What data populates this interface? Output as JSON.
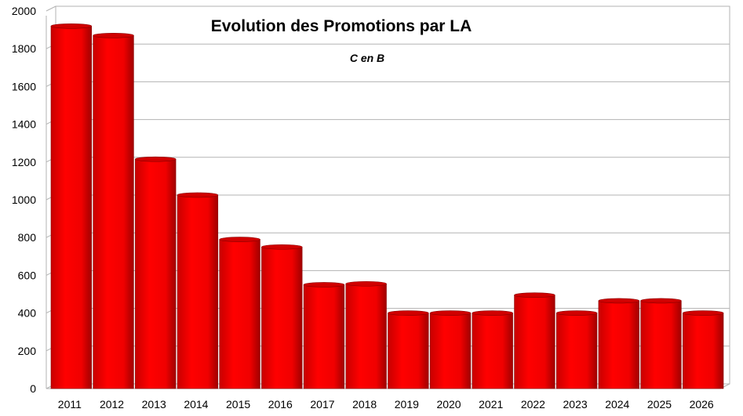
{
  "chart_data": {
    "type": "bar",
    "title": "Evolution des Promotions par LA",
    "subtitle": "C en B",
    "xlabel": "",
    "ylabel": "",
    "categories": [
      "2011",
      "2012",
      "2013",
      "2014",
      "2015",
      "2016",
      "2017",
      "2018",
      "2019",
      "2020",
      "2021",
      "2022",
      "2023",
      "2024",
      "2025",
      "2026"
    ],
    "values": [
      1920,
      1870,
      1215,
      1025,
      790,
      750,
      550,
      555,
      400,
      400,
      400,
      495,
      400,
      465,
      465,
      400
    ],
    "ylim": [
      0,
      2000
    ],
    "yticks": [
      0,
      200,
      400,
      600,
      800,
      1000,
      1200,
      1400,
      1600,
      1800,
      2000
    ],
    "grid": true,
    "legend": "none",
    "colors": {
      "bar": "#ff0000",
      "bar_dark": "#b00000",
      "bar_top": "#d00000",
      "grid": "#b3b3b3"
    }
  }
}
